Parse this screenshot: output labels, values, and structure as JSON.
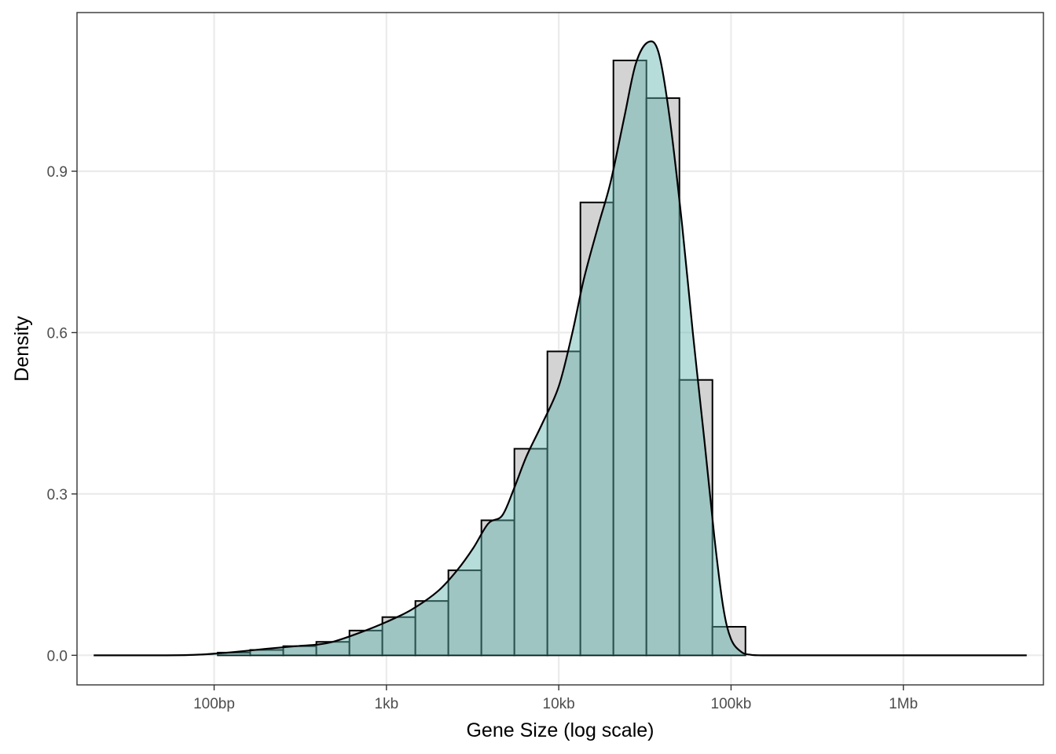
{
  "chart_data": {
    "type": "histogram",
    "xlabel": "Gene Size (log scale)",
    "ylabel": "Density",
    "x_scale": "log10",
    "x_unit": "bp",
    "xlim": [
      16,
      6500000
    ],
    "ylim": [
      -0.055,
      1.195
    ],
    "x_ticks": [
      {
        "value": 100,
        "label": "100bp"
      },
      {
        "value": 1000,
        "label": "1kb"
      },
      {
        "value": 10000,
        "label": "10kb"
      },
      {
        "value": 100000,
        "label": "100kb"
      },
      {
        "value": 1000000,
        "label": "1Mb"
      }
    ],
    "y_ticks": [
      {
        "value": 0,
        "label": "0.0"
      },
      {
        "value": 0.3,
        "label": "0.3"
      },
      {
        "value": 0.6,
        "label": "0.6"
      },
      {
        "value": 0.9,
        "label": "0.9"
      }
    ],
    "grid": true,
    "colors": {
      "bar_fill": "#d3d3d3",
      "bar_outline": "#000000",
      "density_fill": "#5fb4b0",
      "density_line": "#000000",
      "panel_background": "#ffffff",
      "gridline": "#ebebeb"
    },
    "bins": [
      {
        "x0": 105,
        "x1": 162,
        "density": 0.005
      },
      {
        "x0": 162,
        "x1": 252,
        "density": 0.01
      },
      {
        "x0": 252,
        "x1": 392,
        "density": 0.017
      },
      {
        "x0": 392,
        "x1": 610,
        "density": 0.025
      },
      {
        "x0": 610,
        "x1": 947,
        "density": 0.046
      },
      {
        "x0": 947,
        "x1": 1472,
        "density": 0.071
      },
      {
        "x0": 1472,
        "x1": 2288,
        "density": 0.101
      },
      {
        "x0": 2288,
        "x1": 3557,
        "density": 0.158
      },
      {
        "x0": 3557,
        "x1": 5528,
        "density": 0.251
      },
      {
        "x0": 5528,
        "x1": 8593,
        "density": 0.384
      },
      {
        "x0": 8593,
        "x1": 13357,
        "density": 0.565
      },
      {
        "x0": 13357,
        "x1": 20762,
        "density": 0.842
      },
      {
        "x0": 20762,
        "x1": 32273,
        "density": 1.106
      },
      {
        "x0": 32273,
        "x1": 50165,
        "density": 1.036
      },
      {
        "x0": 50165,
        "x1": 77978,
        "density": 0.512
      },
      {
        "x0": 77978,
        "x1": 121210,
        "density": 0.053
      }
    ],
    "density_curve": {
      "x": [
        20,
        50,
        70,
        90,
        130,
        200,
        300,
        400,
        500,
        700,
        1000,
        1400,
        2000,
        2600,
        3200,
        3900,
        4700,
        5500,
        6500,
        8000,
        10000,
        12000,
        14000,
        17000,
        20000,
        24000,
        28000,
        33000,
        38000,
        44000,
        52000,
        60000,
        70000,
        80000,
        90000,
        100000,
        115000,
        130000,
        150000,
        200000,
        1000000,
        5200000
      ],
      "y": [
        0.0,
        0.0,
        0.0005,
        0.002,
        0.006,
        0.012,
        0.017,
        0.02,
        0.026,
        0.042,
        0.062,
        0.085,
        0.12,
        0.16,
        0.2,
        0.245,
        0.26,
        0.31,
        0.37,
        0.43,
        0.5,
        0.6,
        0.7,
        0.8,
        0.88,
        1.0,
        1.1,
        1.14,
        1.12,
        1.0,
        0.8,
        0.6,
        0.4,
        0.22,
        0.09,
        0.03,
        0.006,
        0.001,
        0.0,
        0.0,
        0.0,
        0.0
      ]
    }
  }
}
